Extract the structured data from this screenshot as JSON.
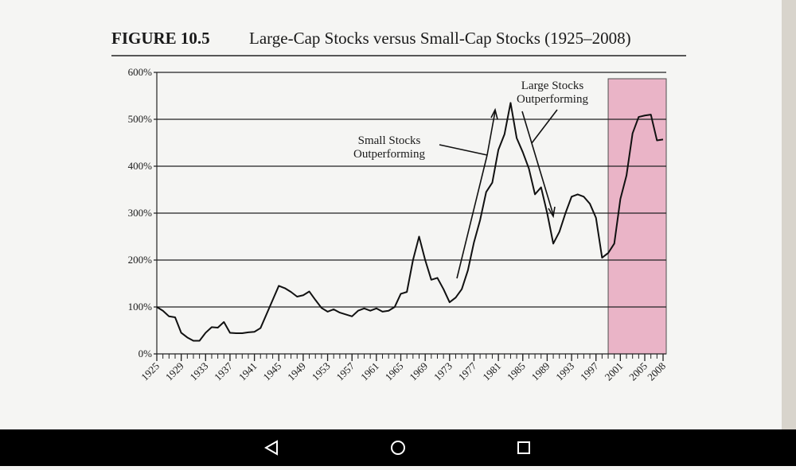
{
  "chart_data": {
    "type": "line",
    "figure_label": "FIGURE 10.5",
    "title": "Large-Cap Stocks versus Small-Cap Stocks (1925–2008)",
    "x": [
      1925,
      1926,
      1927,
      1928,
      1929,
      1930,
      1931,
      1932,
      1933,
      1934,
      1935,
      1936,
      1937,
      1938,
      1939,
      1940,
      1941,
      1942,
      1943,
      1944,
      1945,
      1946,
      1947,
      1948,
      1949,
      1950,
      1951,
      1952,
      1953,
      1954,
      1955,
      1956,
      1957,
      1958,
      1959,
      1960,
      1961,
      1962,
      1963,
      1964,
      1965,
      1966,
      1967,
      1968,
      1969,
      1970,
      1971,
      1972,
      1973,
      1974,
      1975,
      1976,
      1977,
      1978,
      1979,
      1980,
      1981,
      1982,
      1983,
      1984,
      1985,
      1986,
      1987,
      1988,
      1989,
      1990,
      1991,
      1992,
      1993,
      1994,
      1995,
      1996,
      1997,
      1998,
      1999,
      2000,
      2001,
      2002,
      2003,
      2004,
      2005,
      2006,
      2007,
      2008
    ],
    "values": [
      100,
      92,
      80,
      78,
      45,
      35,
      28,
      28,
      45,
      57,
      56,
      68,
      45,
      44,
      44,
      46,
      47,
      55,
      85,
      115,
      145,
      140,
      132,
      122,
      125,
      133,
      115,
      98,
      90,
      95,
      88,
      84,
      80,
      92,
      97,
      92,
      97,
      90,
      92,
      100,
      128,
      132,
      200,
      250,
      200,
      158,
      162,
      138,
      110,
      120,
      138,
      178,
      238,
      285,
      345,
      365,
      435,
      468,
      535,
      460,
      430,
      395,
      340,
      355,
      300,
      235,
      260,
      300,
      335,
      340,
      335,
      320,
      290,
      205,
      215,
      235,
      330,
      380,
      470,
      505,
      508,
      510,
      455,
      457
    ],
    "color": "#111111",
    "xlim": [
      1925,
      2008
    ],
    "xticks": [
      1925,
      1929,
      1933,
      1937,
      1941,
      1945,
      1949,
      1953,
      1957,
      1961,
      1965,
      1969,
      1973,
      1977,
      1981,
      1985,
      1989,
      1993,
      1997,
      2001,
      2005,
      2008
    ],
    "ylim": [
      0,
      600
    ],
    "yticks": [
      {
        "value": 0,
        "label": "0%"
      },
      {
        "value": 100,
        "label": "100%"
      },
      {
        "value": 200,
        "label": "200%"
      },
      {
        "value": 300,
        "label": "300%"
      },
      {
        "value": 400,
        "label": "400%"
      },
      {
        "value": 500,
        "label": "500%"
      },
      {
        "value": 600,
        "label": "600%"
      }
    ],
    "grid": true,
    "highlight": {
      "xlim": [
        1999,
        2008
      ],
      "color": "#e9a9c0"
    },
    "annotations": [
      {
        "lines": [
          "Large Stocks",
          "Outperforming"
        ]
      },
      {
        "lines": [
          "Small Stocks",
          "Outperforming"
        ]
      }
    ]
  }
}
